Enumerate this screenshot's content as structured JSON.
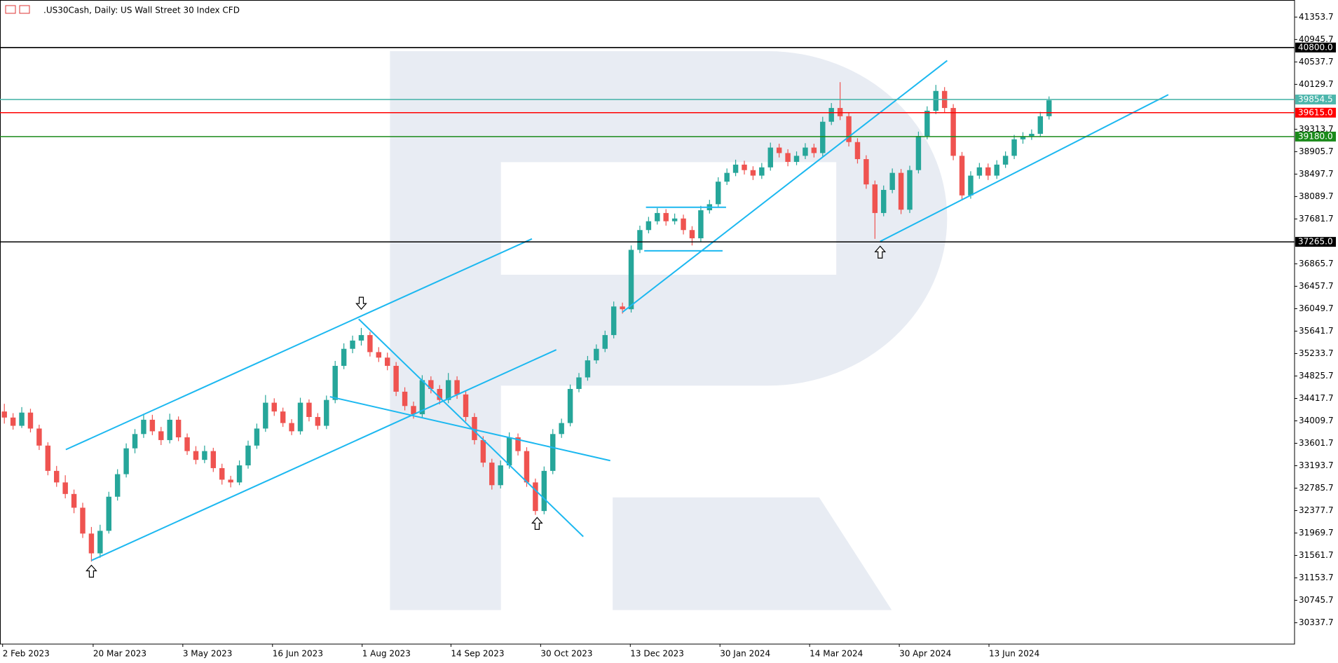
{
  "chart_data": {
    "type": "candlestick",
    "title": ".US30Cash, Daily:  US Wall Street 30 Index CFD",
    "up_color": "#26a69a",
    "down_color": "#ef5350",
    "ohlc": [
      [
        34180,
        34320,
        33960,
        34070
      ],
      [
        34070,
        34150,
        33850,
        33920
      ],
      [
        33920,
        34260,
        33880,
        34160
      ],
      [
        34160,
        34230,
        33800,
        33870
      ],
      [
        33870,
        33940,
        33480,
        33560
      ],
      [
        33560,
        33620,
        33020,
        33100
      ],
      [
        33100,
        33190,
        32810,
        32890
      ],
      [
        32890,
        33020,
        32600,
        32680
      ],
      [
        32680,
        32760,
        32330,
        32430
      ],
      [
        32430,
        32520,
        31880,
        31960
      ],
      [
        31960,
        32080,
        31450,
        31600
      ],
      [
        31600,
        32120,
        31520,
        32010
      ],
      [
        32010,
        32720,
        31960,
        32630
      ],
      [
        32630,
        33130,
        32560,
        33040
      ],
      [
        33040,
        33600,
        32980,
        33510
      ],
      [
        33510,
        33860,
        33420,
        33770
      ],
      [
        33770,
        34130,
        33700,
        34030
      ],
      [
        34030,
        34120,
        33750,
        33820
      ],
      [
        33820,
        33900,
        33570,
        33660
      ],
      [
        33660,
        34140,
        33600,
        34030
      ],
      [
        34030,
        34090,
        33640,
        33710
      ],
      [
        33710,
        33780,
        33390,
        33460
      ],
      [
        33460,
        33550,
        33220,
        33300
      ],
      [
        33300,
        33560,
        33240,
        33460
      ],
      [
        33460,
        33520,
        33080,
        33150
      ],
      [
        33150,
        33230,
        32850,
        32940
      ],
      [
        32940,
        33010,
        32800,
        32890
      ],
      [
        32890,
        33290,
        32840,
        33200
      ],
      [
        33200,
        33650,
        33140,
        33560
      ],
      [
        33560,
        33960,
        33500,
        33870
      ],
      [
        33870,
        34480,
        33810,
        34340
      ],
      [
        34340,
        34420,
        34100,
        34180
      ],
      [
        34180,
        34250,
        33900,
        33970
      ],
      [
        33970,
        34040,
        33750,
        33820
      ],
      [
        33820,
        34430,
        33760,
        34340
      ],
      [
        34340,
        34400,
        34000,
        34080
      ],
      [
        34080,
        34150,
        33850,
        33920
      ],
      [
        33920,
        34470,
        33860,
        34390
      ],
      [
        34390,
        35100,
        34330,
        35010
      ],
      [
        35010,
        35420,
        34950,
        35320
      ],
      [
        35320,
        35560,
        35240,
        35470
      ],
      [
        35470,
        35700,
        35380,
        35570
      ],
      [
        35570,
        35630,
        35180,
        35260
      ],
      [
        35260,
        35350,
        35080,
        35160
      ],
      [
        35160,
        35250,
        34930,
        35010
      ],
      [
        35010,
        35080,
        34460,
        34540
      ],
      [
        34540,
        34620,
        34200,
        34280
      ],
      [
        34280,
        34360,
        34050,
        34130
      ],
      [
        34130,
        34840,
        34070,
        34750
      ],
      [
        34750,
        34820,
        34510,
        34590
      ],
      [
        34590,
        34660,
        34310,
        34390
      ],
      [
        34390,
        34880,
        34330,
        34750
      ],
      [
        34750,
        34820,
        34410,
        34490
      ],
      [
        34490,
        34560,
        34000,
        34080
      ],
      [
        34080,
        34150,
        33580,
        33660
      ],
      [
        33660,
        33730,
        33170,
        33250
      ],
      [
        33250,
        33320,
        32760,
        32840
      ],
      [
        32840,
        33290,
        32780,
        33200
      ],
      [
        33200,
        33800,
        33140,
        33710
      ],
      [
        33710,
        33780,
        33380,
        33460
      ],
      [
        33460,
        33530,
        32810,
        32890
      ],
      [
        32890,
        32960,
        32300,
        32370
      ],
      [
        32370,
        33180,
        32310,
        33100
      ],
      [
        33100,
        33860,
        33040,
        33770
      ],
      [
        33770,
        34050,
        33700,
        33970
      ],
      [
        33970,
        34670,
        33910,
        34590
      ],
      [
        34590,
        34880,
        34530,
        34800
      ],
      [
        34800,
        35190,
        34740,
        35110
      ],
      [
        35110,
        35400,
        35050,
        35320
      ],
      [
        35320,
        35650,
        35260,
        35570
      ],
      [
        35570,
        36180,
        35510,
        36090
      ],
      [
        36090,
        36160,
        35960,
        36040
      ],
      [
        36040,
        37200,
        35980,
        37120
      ],
      [
        37120,
        37560,
        37060,
        37480
      ],
      [
        37480,
        37720,
        37420,
        37640
      ],
      [
        37640,
        37880,
        37580,
        37790
      ],
      [
        37790,
        37860,
        37560,
        37640
      ],
      [
        37640,
        37780,
        37580,
        37690
      ],
      [
        37690,
        37760,
        37400,
        37480
      ],
      [
        37480,
        37550,
        37200,
        37330
      ],
      [
        37330,
        37920,
        37270,
        37840
      ],
      [
        37840,
        38030,
        37780,
        37950
      ],
      [
        37950,
        38440,
        37890,
        38360
      ],
      [
        38360,
        38600,
        38300,
        38520
      ],
      [
        38520,
        38760,
        38460,
        38670
      ],
      [
        38670,
        38740,
        38490,
        38570
      ],
      [
        38570,
        38640,
        38390,
        38470
      ],
      [
        38470,
        38700,
        38410,
        38620
      ],
      [
        38620,
        39070,
        38560,
        38980
      ],
      [
        38980,
        39050,
        38800,
        38880
      ],
      [
        38880,
        38950,
        38640,
        38720
      ],
      [
        38720,
        38910,
        38660,
        38830
      ],
      [
        38830,
        39060,
        38770,
        38980
      ],
      [
        38980,
        39050,
        38800,
        38880
      ],
      [
        38880,
        39540,
        38820,
        39450
      ],
      [
        39450,
        39790,
        39390,
        39700
      ],
      [
        39700,
        40170,
        39480,
        39550
      ],
      [
        39550,
        39620,
        39000,
        39080
      ],
      [
        39080,
        39150,
        38690,
        38770
      ],
      [
        38770,
        38840,
        38230,
        38310
      ],
      [
        38310,
        38380,
        37320,
        37790
      ],
      [
        37790,
        38290,
        37730,
        38210
      ],
      [
        38210,
        38600,
        38150,
        38520
      ],
      [
        38520,
        38590,
        37770,
        37850
      ],
      [
        37850,
        38650,
        37790,
        38570
      ],
      [
        38570,
        39270,
        38510,
        39190
      ],
      [
        39190,
        39730,
        39130,
        39650
      ],
      [
        39650,
        40120,
        39590,
        40010
      ],
      [
        40010,
        40080,
        39620,
        39700
      ],
      [
        39700,
        39770,
        38750,
        38830
      ],
      [
        38830,
        38900,
        38030,
        38110
      ],
      [
        38110,
        38550,
        38050,
        38470
      ],
      [
        38470,
        38700,
        38410,
        38620
      ],
      [
        38620,
        38690,
        38390,
        38470
      ],
      [
        38470,
        38750,
        38410,
        38670
      ],
      [
        38670,
        38910,
        38610,
        38830
      ],
      [
        38830,
        39210,
        38770,
        39130
      ],
      [
        39130,
        39260,
        39050,
        39180
      ],
      [
        39180,
        39310,
        39120,
        39230
      ],
      [
        39230,
        39630,
        39170,
        39550
      ],
      [
        39550,
        39910,
        39490,
        39840
      ]
    ],
    "xlim": [
      -0.5,
      148.2
    ],
    "xticks": [
      {
        "value": -0.2,
        "label": "2 Feb 2023"
      },
      {
        "value": 10.2,
        "label": "20 Mar 2023"
      },
      {
        "value": 20.5,
        "label": "3 May 2023"
      },
      {
        "value": 30.8,
        "label": "16 Jun 2023"
      },
      {
        "value": 41.1,
        "label": "1 Aug 2023"
      },
      {
        "value": 51.3,
        "label": "14 Sep 2023"
      },
      {
        "value": 61.6,
        "label": "30 Oct 2023"
      },
      {
        "value": 71.9,
        "label": "13 Dec 2023"
      },
      {
        "value": 82.2,
        "label": "30 Jan 2024"
      },
      {
        "value": 92.5,
        "label": "14 Mar 2024"
      },
      {
        "value": 102.8,
        "label": "30 Apr 2024"
      },
      {
        "value": 113.1,
        "label": "13 Jun 2024"
      }
    ],
    "ylim": [
      29950,
      41664
    ],
    "yticks": [
      41353.7,
      40945.7,
      40537.7,
      40129.7,
      39313.7,
      38905.7,
      38497.7,
      38089.7,
      37681.7,
      36865.7,
      36457.7,
      36049.7,
      35641.7,
      35233.7,
      34825.7,
      34417.7,
      34009.7,
      33601.7,
      33193.7,
      32785.7,
      32377.7,
      31969.7,
      31561.7,
      31153.7,
      30745.7,
      30337.7
    ],
    "levels": [
      {
        "value": 40800,
        "label": "40800.0",
        "color": "#000000"
      },
      {
        "value": 39854.5,
        "label": "39854.5",
        "color": "#4db6ac"
      },
      {
        "value": 39615,
        "label": "39615.0",
        "color": "#ff0000"
      },
      {
        "value": 39180,
        "label": "39180.0",
        "color": "#1a8a1a"
      },
      {
        "value": 37265,
        "label": "37265.0",
        "color": "#000000"
      }
    ],
    "trendlines": {
      "color": "#1cb8f0",
      "lines": [
        [
          7.06,
          33487,
          60.6,
          37320
        ],
        [
          10,
          31471,
          63.4,
          35303
        ],
        [
          37.4,
          34449,
          69.6,
          33286
        ],
        [
          40.7,
          35861,
          66.5,
          31905
        ],
        [
          71,
          35986,
          108.3,
          40562
        ],
        [
          100.6,
          37273,
          133.7,
          39942
        ],
        [
          73.7,
          37894,
          82.9,
          37894
        ],
        [
          73.5,
          37103,
          82.5,
          37103
        ]
      ]
    },
    "arrows": [
      {
        "x": 41,
        "y": 36156,
        "direction": "down"
      },
      {
        "x": 10,
        "y": 31269,
        "direction": "up"
      },
      {
        "x": 61.2,
        "y": 32138,
        "direction": "up"
      },
      {
        "x": 100.6,
        "y": 37072,
        "direction": "up"
      }
    ]
  }
}
